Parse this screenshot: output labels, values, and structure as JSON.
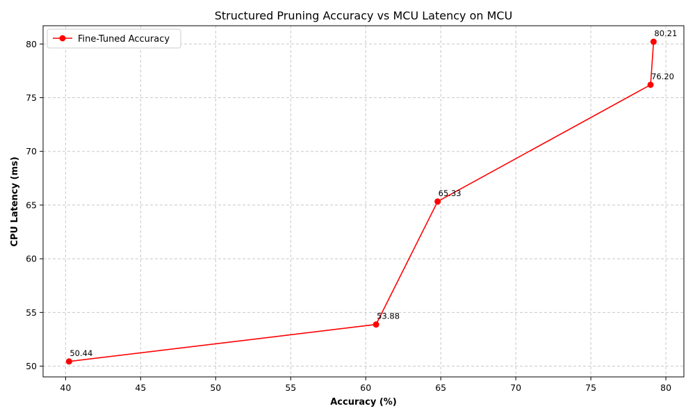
{
  "chart_data": {
    "type": "line",
    "title": "Structured Pruning Accuracy vs MCU Latency on MCU",
    "xlabel": "Accuracy (%)",
    "ylabel": "CPU Latency (ms)",
    "xlim": [
      38.5,
      81.2
    ],
    "ylim": [
      49.0,
      81.7
    ],
    "xticks": [
      40,
      45,
      50,
      55,
      60,
      65,
      70,
      75,
      80
    ],
    "yticks": [
      50,
      55,
      60,
      65,
      70,
      75,
      80
    ],
    "grid": true,
    "legend_position": "top-left",
    "series": [
      {
        "name": "Fine-Tuned Accuracy",
        "color": "#ff0000",
        "marker": "circle",
        "x": [
          40.23,
          60.69,
          64.79,
          78.98,
          79.18
        ],
        "y": [
          50.44,
          53.88,
          65.33,
          76.2,
          80.21
        ],
        "labels": [
          "50.44",
          "53.88",
          "65.33",
          "76.20",
          "80.21"
        ]
      }
    ]
  }
}
